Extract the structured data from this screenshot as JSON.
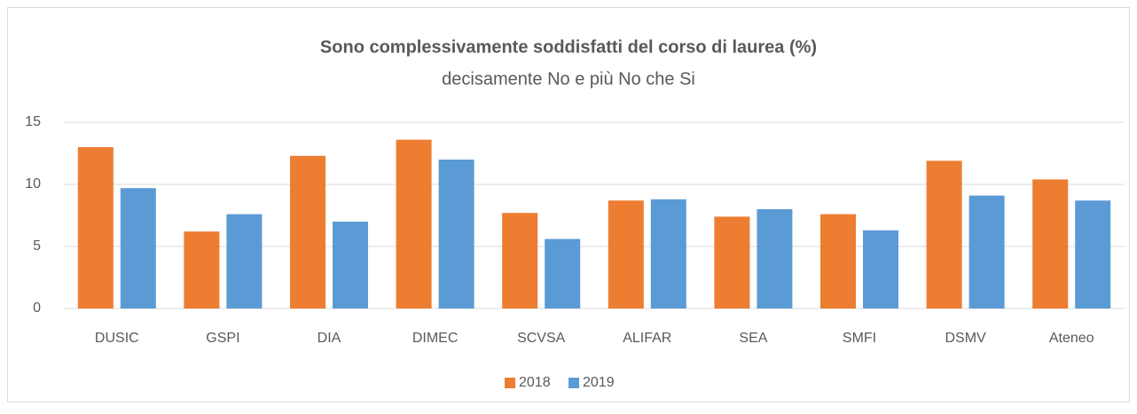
{
  "chart_data": {
    "type": "bar",
    "title": "Sono complessivamente soddisfatti del corso di laurea (%)",
    "subtitle": "decisamente No e più No che Si",
    "categories": [
      "DUSIC",
      "GSPI",
      "DIA",
      "DIMEC",
      "SCVSA",
      "ALIFAR",
      "SEA",
      "SMFI",
      "DSMV",
      "Ateneo"
    ],
    "series": [
      {
        "name": "2018",
        "color": "#ed7d31",
        "values": [
          13.0,
          6.2,
          12.3,
          13.6,
          7.7,
          8.7,
          7.4,
          7.6,
          11.9,
          10.4
        ]
      },
      {
        "name": "2019",
        "color": "#5b9bd5",
        "values": [
          9.7,
          7.6,
          7.0,
          12.0,
          5.6,
          8.8,
          8.0,
          6.3,
          9.1,
          8.7
        ]
      }
    ],
    "ylim": [
      0,
      15
    ],
    "yticks": [
      0,
      5,
      10,
      15
    ],
    "grid": true,
    "legend": "bottom"
  }
}
